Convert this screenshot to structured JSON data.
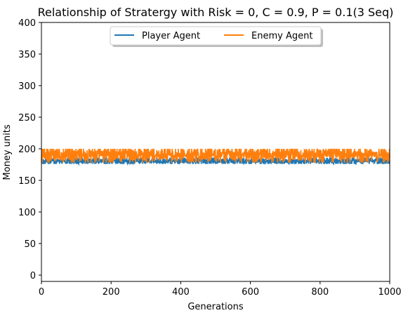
{
  "chart_data": {
    "type": "line",
    "title": "Relationship of Stratergy with Risk = 0, C = 0.9, P = 0.1(3 Seq)",
    "xlabel": "Generations",
    "ylabel": "Money units",
    "xlim": [
      0,
      1000
    ],
    "ylim": [
      -10,
      400
    ],
    "xticks": [
      0,
      200,
      400,
      600,
      800,
      1000
    ],
    "yticks": [
      0,
      50,
      100,
      150,
      200,
      250,
      300,
      350,
      400
    ],
    "grid": false,
    "legend": {
      "placement": "top-center",
      "columns": 2
    },
    "series": [
      {
        "name": "Player Agent",
        "color": "#1f77b4",
        "x_range": [
          0,
          1000
        ],
        "values_pattern": [
          180,
          185,
          178,
          182,
          176,
          186,
          180,
          177,
          184,
          179,
          181,
          176,
          185,
          178,
          183,
          180
        ],
        "y_min": 176,
        "y_max": 186
      },
      {
        "name": "Enemy Agent",
        "color": "#ff7f0e",
        "x_range": [
          0,
          1000
        ],
        "values_pattern": [
          190,
          197,
          184,
          199,
          187,
          193,
          181,
          196,
          189,
          200,
          185,
          192,
          188,
          198,
          183,
          194
        ],
        "y_min": 178,
        "y_max": 200
      }
    ]
  }
}
